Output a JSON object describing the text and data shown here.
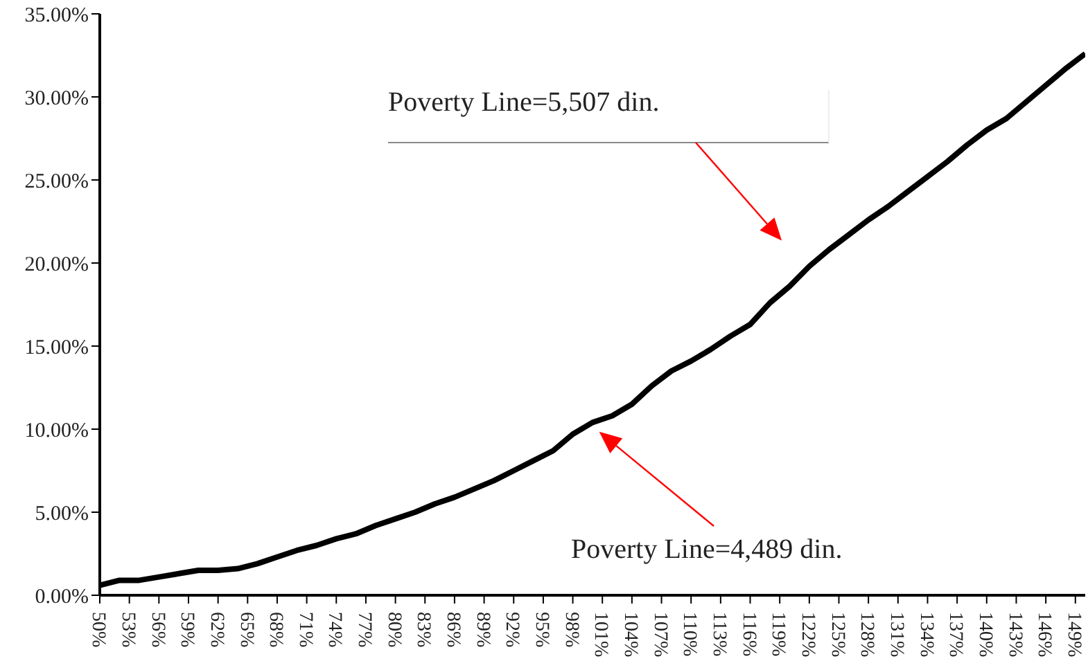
{
  "chart_data": {
    "type": "line",
    "x": [
      50,
      52,
      54,
      56,
      58,
      60,
      62,
      64,
      66,
      68,
      70,
      72,
      74,
      76,
      78,
      80,
      82,
      84,
      86,
      88,
      90,
      92,
      94,
      96,
      98,
      100,
      102,
      104,
      106,
      108,
      110,
      112,
      114,
      116,
      118,
      120,
      122,
      124,
      126,
      128,
      130,
      132,
      134,
      136,
      138,
      140,
      142,
      144,
      146,
      148,
      150
    ],
    "series": [
      {
        "color": "#000000",
        "values": [
          0.6,
          0.9,
          0.9,
          1.1,
          1.3,
          1.5,
          1.5,
          1.6,
          1.9,
          2.3,
          2.7,
          3.0,
          3.4,
          3.7,
          4.2,
          4.6,
          5.0,
          5.5,
          5.9,
          6.4,
          6.9,
          7.5,
          8.1,
          8.7,
          9.7,
          10.4,
          10.8,
          11.5,
          12.6,
          13.5,
          14.1,
          14.8,
          15.6,
          16.3,
          17.6,
          18.6,
          19.8,
          20.8,
          21.7,
          22.6,
          23.4,
          24.3,
          25.2,
          26.1,
          27.1,
          28.0,
          28.7,
          29.7,
          30.7,
          31.7,
          32.6
        ]
      }
    ],
    "xlim": [
      50,
      150
    ],
    "xticks": [
      {
        "value": 50,
        "label": "50%"
      },
      {
        "value": 53,
        "label": "53%"
      },
      {
        "value": 56,
        "label": "56%"
      },
      {
        "value": 59,
        "label": "59%"
      },
      {
        "value": 62,
        "label": "62%"
      },
      {
        "value": 65,
        "label": "65%"
      },
      {
        "value": 68,
        "label": "68%"
      },
      {
        "value": 71,
        "label": "71%"
      },
      {
        "value": 74,
        "label": "74%"
      },
      {
        "value": 77,
        "label": "77%"
      },
      {
        "value": 80,
        "label": "80%"
      },
      {
        "value": 83,
        "label": "83%"
      },
      {
        "value": 86,
        "label": "86%"
      },
      {
        "value": 89,
        "label": "89%"
      },
      {
        "value": 92,
        "label": "92%"
      },
      {
        "value": 95,
        "label": "95%"
      },
      {
        "value": 98,
        "label": "98%"
      },
      {
        "value": 101,
        "label": "101%"
      },
      {
        "value": 104,
        "label": "104%"
      },
      {
        "value": 107,
        "label": "107%"
      },
      {
        "value": 110,
        "label": "110%"
      },
      {
        "value": 113,
        "label": "113%"
      },
      {
        "value": 116,
        "label": "116%"
      },
      {
        "value": 119,
        "label": "119%"
      },
      {
        "value": 122,
        "label": "122%"
      },
      {
        "value": 125,
        "label": "125%"
      },
      {
        "value": 128,
        "label": "128%"
      },
      {
        "value": 131,
        "label": "131%"
      },
      {
        "value": 134,
        "label": "134%"
      },
      {
        "value": 137,
        "label": "137%"
      },
      {
        "value": 140,
        "label": "140%"
      },
      {
        "value": 143,
        "label": "143%"
      },
      {
        "value": 146,
        "label": "146%"
      },
      {
        "value": 149,
        "label": "149%"
      }
    ],
    "ylim": [
      0,
      35
    ],
    "yticks": [
      {
        "value": 0,
        "label": "0.00%"
      },
      {
        "value": 5,
        "label": "5.00%"
      },
      {
        "value": 10,
        "label": "10.00%"
      },
      {
        "value": 15,
        "label": "15.00%"
      },
      {
        "value": 20,
        "label": "20.00%"
      },
      {
        "value": 25,
        "label": "25.00%"
      },
      {
        "value": 30,
        "label": "30.00%"
      },
      {
        "value": 35,
        "label": "35.00%"
      }
    ],
    "annotations": [
      "Poverty Line=5,507 din.",
      "Poverty Line=4,489 din."
    ],
    "marker": "none",
    "line_style": "solid",
    "grid": false,
    "legend": false
  }
}
